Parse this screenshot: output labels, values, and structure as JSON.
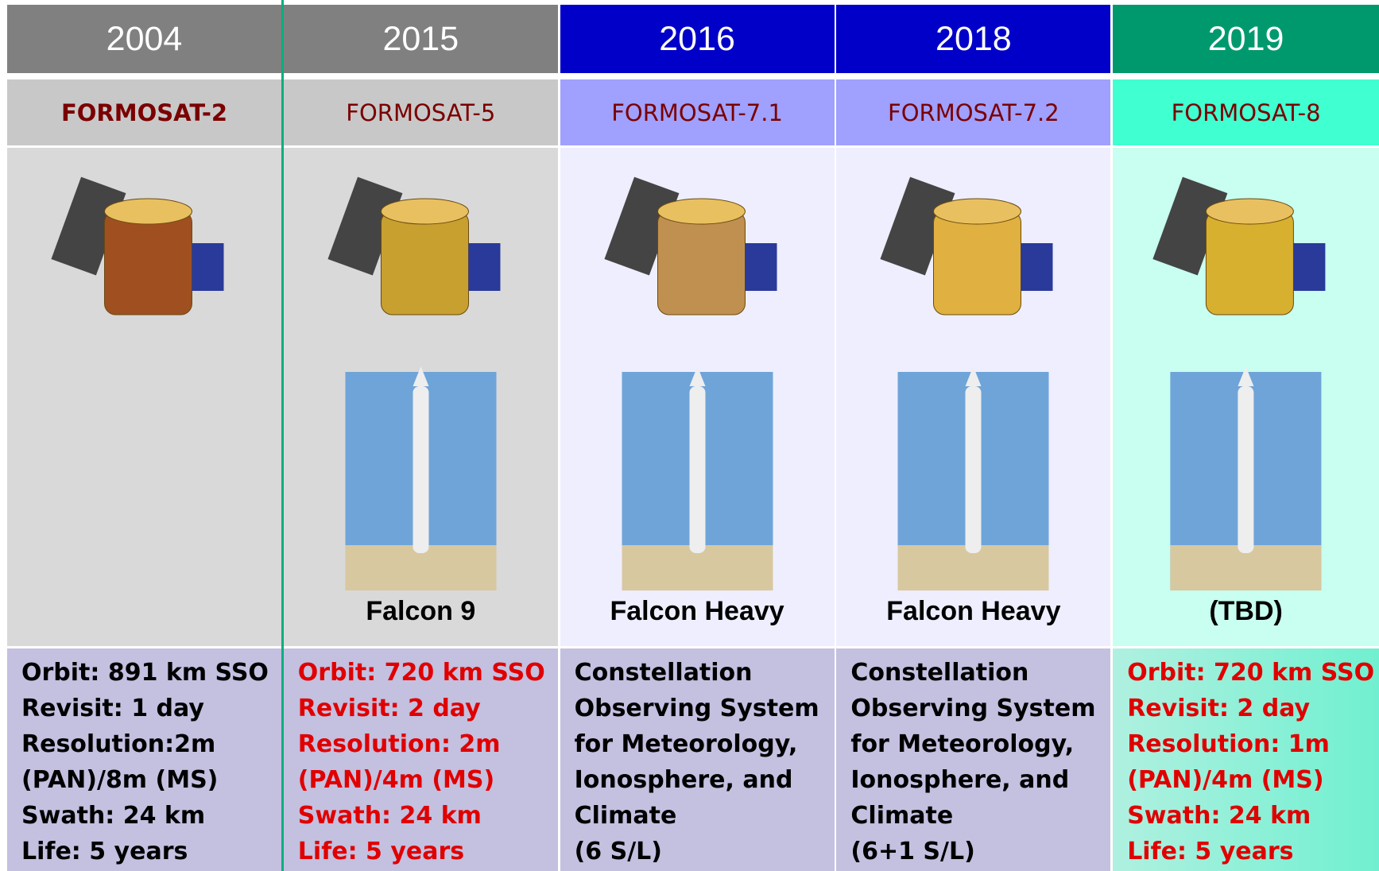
{
  "columns": [
    {
      "year": "2004",
      "name": "FORMOSAT-2",
      "info": [
        "Orbit: 891 km SSO",
        "Revisit: 1 day",
        "Resolution:2m",
        "(PAN)/8m (MS)",
        "Swath: 24 km",
        "Life: 5 years"
      ]
    },
    {
      "year": "2015",
      "name": "FORMOSAT-5",
      "launcher": "Falcon 9",
      "info": [
        "Orbit: 720 km SSO",
        "Revisit: 2 day",
        "Resolution: 2m",
        "(PAN)/4m (MS)",
        "Swath: 24 km",
        "Life: 5 years"
      ]
    },
    {
      "year": "2016",
      "name": "FORMOSAT-7.1",
      "launcher": "Falcon Heavy",
      "info": [
        "Constellation",
        "Observing System",
        "for Meteorology,",
        "Ionosphere, and",
        "Climate",
        "(6 S/L)"
      ]
    },
    {
      "year": "2018",
      "name": "FORMOSAT-7.2",
      "launcher": "Falcon Heavy",
      "info": [
        "Constellation",
        "Observing System",
        "for Meteorology,",
        "Ionosphere, and",
        "Climate",
        "(6+1 S/L)"
      ]
    },
    {
      "year": "2019",
      "name": "FORMOSAT-8",
      "launcher": "(TBD)",
      "info": [
        "Orbit: 720 km SSO",
        "Revisit: 2 day",
        "Resolution: 1m",
        "(PAN)/4m (MS)",
        "Swath: 24 km",
        "Life: 5 years"
      ]
    }
  ]
}
